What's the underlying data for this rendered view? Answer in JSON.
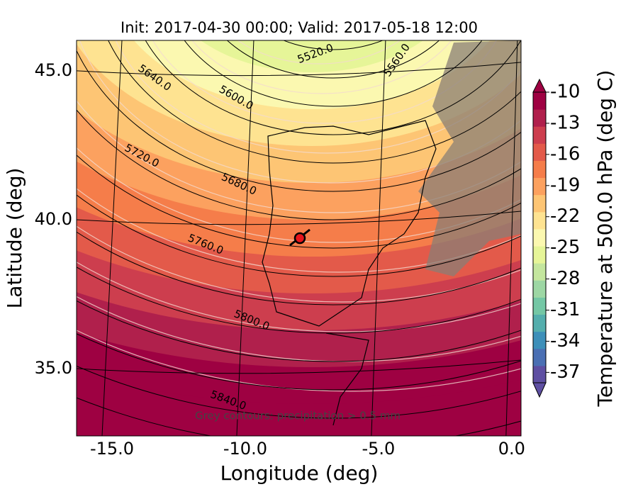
{
  "chart_data": {
    "type": "map",
    "title": "Init: 2017-04-30 00:00; Valid: 2017-05-18 12:00",
    "x_label": "Longitude (deg)",
    "y_label": "Latitude (deg)",
    "xlim": [
      -16.33,
      0.35
    ],
    "ylim": [
      32.74,
      46.02
    ],
    "xticks": [
      {
        "value": -15,
        "label": "-15.0"
      },
      {
        "value": -10,
        "label": "-10.0"
      },
      {
        "value": -5,
        "label": "-5.0"
      },
      {
        "value": 0,
        "label": "0.0"
      }
    ],
    "yticks": [
      {
        "value": 35,
        "label": "35.0"
      },
      {
        "value": 40,
        "label": "40.0"
      },
      {
        "value": 45,
        "label": "45.0"
      }
    ],
    "grid": true,
    "contour_labels": [
      "5520.0",
      "5560.0",
      "5600.0",
      "5640.0",
      "5680.0",
      "5720.0",
      "5760.0",
      "5800.0",
      "5840.0"
    ],
    "annotation": "Grey contours: precipitation > 0.5 mm",
    "point": {
      "x": -7.95,
      "y": 39.38,
      "color": "#e8141b"
    },
    "colorbar": {
      "label": "Temperature at 500.0 hPa (deg C)",
      "lim": [
        -38,
        -10
      ],
      "ticks": [
        -37,
        -34,
        -31,
        -28,
        -25,
        -22,
        -19,
        -16,
        -13,
        -10
      ],
      "colors": [
        "#5e4fa2",
        "#4a6fb3",
        "#3d8fb9",
        "#54aead",
        "#74c7a5",
        "#9dd7a4",
        "#c4e69e",
        "#e6f598",
        "#fbf8b0",
        "#fee391",
        "#fdc574",
        "#fca15f",
        "#f57d4a",
        "#e35a4a",
        "#cd3e4e",
        "#b0204c",
        "#9e0142"
      ]
    }
  }
}
